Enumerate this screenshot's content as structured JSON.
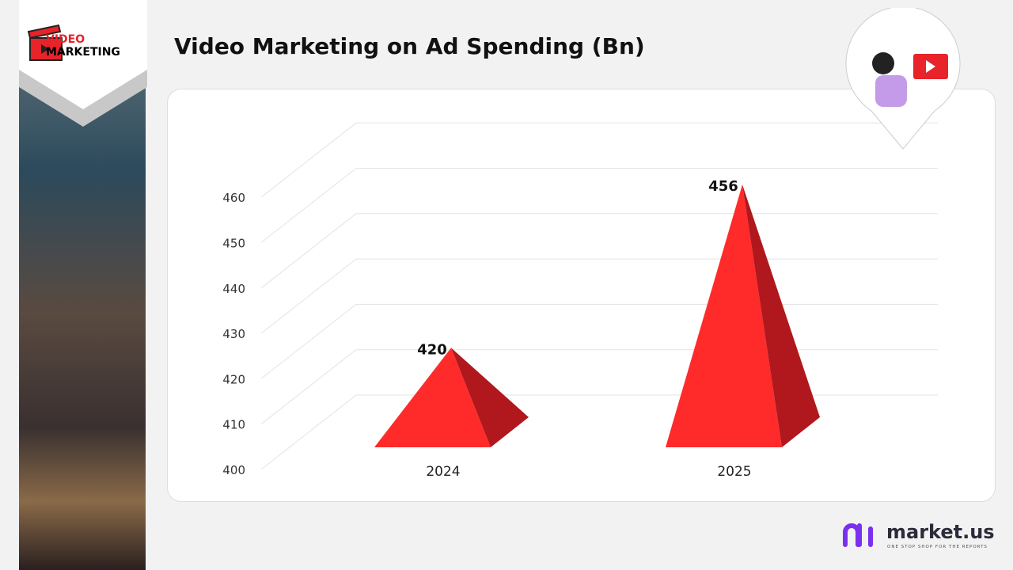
{
  "logo": {
    "line1": "VIDEO",
    "line2": "MARKETING"
  },
  "title": "Video Marketing on Ad Spending (Bn)",
  "brand": {
    "name": "market.us",
    "tagline": "ONE STOP SHOP FOR THE REPORTS"
  },
  "colors": {
    "accent": "#ff2a2a",
    "shade": "#b0181e",
    "brand": "#7b2ff0"
  },
  "chart_data": {
    "type": "bar",
    "style": "3d-pyramid",
    "title": "Video Marketing on Ad Spending (Bn)",
    "categories": [
      "2024",
      "2025"
    ],
    "values": [
      420,
      456
    ],
    "data_labels": [
      "420",
      "456"
    ],
    "yticks": [
      "400",
      "410",
      "420",
      "430",
      "440",
      "450",
      "460"
    ],
    "ylim": [
      400,
      460
    ],
    "grid": true,
    "legend": "none"
  }
}
